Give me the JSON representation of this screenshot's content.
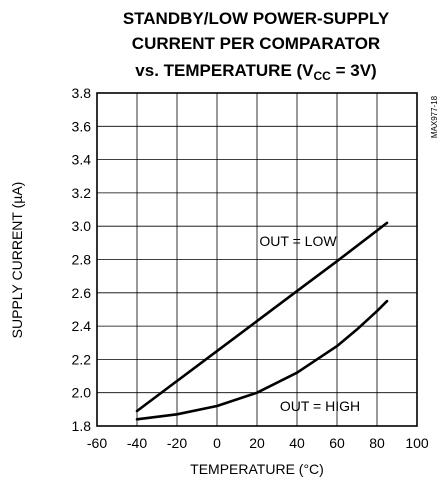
{
  "chart_data": {
    "type": "line",
    "title_lines": [
      "STANDBY/LOW POWER-SUPPLY",
      "CURRENT PER COMPARATOR",
      "vs. TEMPERATURE (V"
    ],
    "title_subscript": "CC",
    "title_suffix": " = 3V)",
    "part_code": "MAX977-18",
    "xlabel": "TEMPERATURE (°C)",
    "ylabel": "SUPPLY CURRENT (µA)",
    "xlim": [
      -60,
      100
    ],
    "ylim": [
      1.8,
      3.8
    ],
    "xticks": [
      "-60",
      "-40",
      "-20",
      "0",
      "20",
      "40",
      "60",
      "80",
      "100"
    ],
    "yticks": [
      "1.8",
      "2.0",
      "2.2",
      "2.4",
      "2.6",
      "2.8",
      "3.0",
      "3.2",
      "3.4",
      "3.6",
      "3.8"
    ],
    "xtick_values": [
      -60,
      -40,
      -20,
      0,
      20,
      40,
      60,
      80,
      100
    ],
    "ytick_values": [
      1.8,
      2.0,
      2.2,
      2.4,
      2.6,
      2.8,
      3.0,
      3.2,
      3.4,
      3.6,
      3.8
    ],
    "grid": true,
    "series": [
      {
        "name": "OUT = LOW",
        "x": [
          -40,
          -20,
          0,
          20,
          40,
          60,
          85
        ],
        "y": [
          1.89,
          2.07,
          2.25,
          2.43,
          2.61,
          2.79,
          3.02
        ]
      },
      {
        "name": "OUT = HIGH",
        "x": [
          -40,
          -20,
          0,
          20,
          40,
          60,
          70,
          80,
          85
        ],
        "y": [
          1.84,
          1.87,
          1.92,
          2.0,
          2.12,
          2.28,
          2.38,
          2.49,
          2.55
        ]
      }
    ]
  }
}
